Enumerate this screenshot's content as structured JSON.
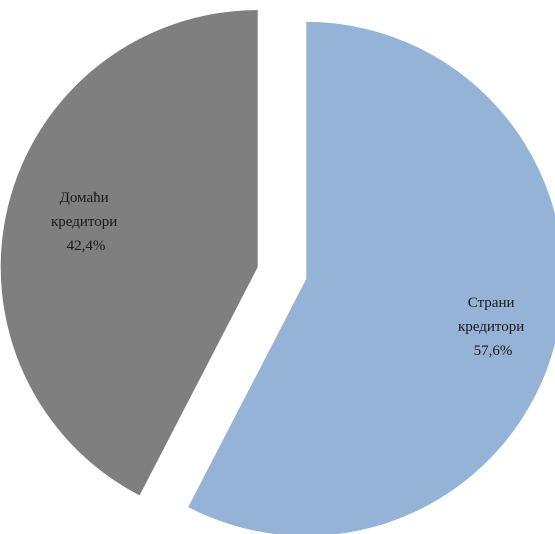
{
  "chart_data": {
    "type": "pie",
    "slices": [
      {
        "name_line1": "Страни",
        "name_line2": "кредитори",
        "value_label": "57,6%",
        "value": 57.6,
        "color": "#95b3d7"
      },
      {
        "name_line1": "Домаћи",
        "name_line2": "кредитори",
        "value_label": "42,4%",
        "value": 42.4,
        "color": "#7f7f7f"
      }
    ],
    "start_angle": "12 o'clock",
    "direction": "clockwise",
    "exploded": true,
    "legend": "none"
  }
}
